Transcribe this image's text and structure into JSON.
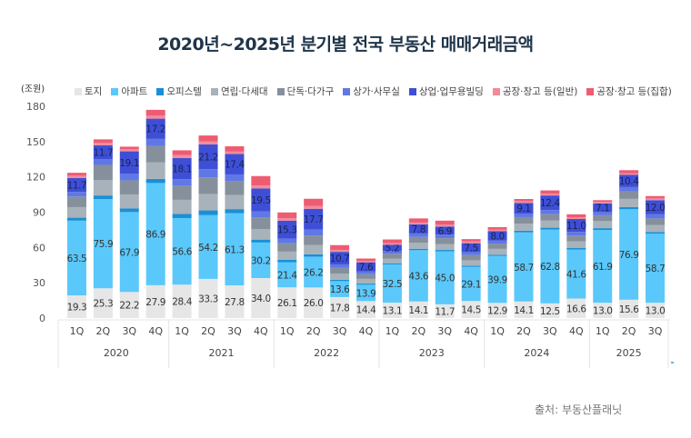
{
  "title": "2020년~2025년 분기별 전국 부동산 매매거래금액",
  "source": "출처: 부동산플래닛",
  "chart_data": {
    "type": "bar",
    "stacked": true,
    "title": "2020년~2025년 분기별 전국 부동산 매매거래금액",
    "ylabel": "(조원)",
    "xlabel": "",
    "ylim": [
      0,
      180
    ],
    "yticks": [
      0,
      30,
      60,
      90,
      120,
      150,
      180
    ],
    "grid": false,
    "legend_position": "top",
    "categories": [
      "1Q",
      "2Q",
      "3Q",
      "4Q",
      "1Q",
      "2Q",
      "3Q",
      "4Q",
      "1Q",
      "2Q",
      "3Q",
      "4Q",
      "1Q",
      "2Q",
      "3Q",
      "4Q",
      "1Q",
      "2Q",
      "3Q",
      "4Q",
      "1Q",
      "2Q",
      "3Q"
    ],
    "groups": [
      {
        "label": "2020",
        "count": 4
      },
      {
        "label": "2021",
        "count": 4
      },
      {
        "label": "2022",
        "count": 4
      },
      {
        "label": "2023",
        "count": 4
      },
      {
        "label": "2024",
        "count": 4
      },
      {
        "label": "2025",
        "count": 3
      }
    ],
    "series": [
      {
        "name": "토지",
        "color": "#e6e6e6",
        "labeled": true,
        "values": [
          19.3,
          25.3,
          22.2,
          27.9,
          28.4,
          33.3,
          27.8,
          34.0,
          26.1,
          26.0,
          17.8,
          14.4,
          13.1,
          14.1,
          11.7,
          14.5,
          12.9,
          14.1,
          12.5,
          16.6,
          13.0,
          15.6,
          13.0
        ]
      },
      {
        "name": "아파트",
        "color": "#5ac8fa",
        "labeled": true,
        "values": [
          63.5,
          75.9,
          67.9,
          86.9,
          56.6,
          54.2,
          61.3,
          30.2,
          21.4,
          26.2,
          13.6,
          13.9,
          32.5,
          43.6,
          45.0,
          29.1,
          39.9,
          58.7,
          62.8,
          41.6,
          61.9,
          76.9,
          58.7
        ]
      },
      {
        "name": "오피스텔",
        "color": "#1a8fd6",
        "labeled": false,
        "values": [
          2.5,
          3.0,
          3.0,
          3.5,
          3.5,
          4.0,
          3.5,
          2.5,
          2.0,
          2.0,
          1.2,
          1.0,
          1.0,
          1.2,
          1.2,
          1.0,
          1.0,
          1.5,
          1.5,
          1.5,
          1.5,
          1.8,
          1.5
        ]
      },
      {
        "name": "연립·다세대",
        "color": "#a7b2ba",
        "labeled": false,
        "values": [
          9.0,
          13.0,
          12.0,
          14.0,
          12.0,
          14.0,
          12.0,
          9.0,
          7.0,
          8.0,
          5.0,
          4.0,
          4.0,
          5.0,
          5.0,
          4.5,
          5.0,
          6.0,
          6.0,
          5.5,
          6.0,
          7.0,
          6.0
        ]
      },
      {
        "name": "단독·다가구",
        "color": "#85909c",
        "labeled": false,
        "values": [
          9.0,
          13.0,
          12.0,
          14.0,
          12.0,
          14.0,
          12.0,
          10.0,
          7.0,
          8.0,
          5.0,
          4.0,
          4.0,
          5.0,
          5.0,
          4.5,
          4.5,
          5.5,
          5.5,
          5.0,
          5.0,
          6.5,
          5.5
        ]
      },
      {
        "name": "상가·사무실",
        "color": "#6077e6",
        "labeled": false,
        "values": [
          4.0,
          5.0,
          5.5,
          6.0,
          5.5,
          7.0,
          5.5,
          5.0,
          4.0,
          5.0,
          3.0,
          2.5,
          2.5,
          3.0,
          3.0,
          2.5,
          2.5,
          3.0,
          3.5,
          3.0,
          3.0,
          3.5,
          3.5
        ]
      },
      {
        "name": "상업·업무용빌딩",
        "color": "#3e4fd6",
        "labeled": true,
        "values": [
          11.7,
          11.7,
          19.1,
          17.2,
          18.1,
          21.2,
          17.4,
          19.5,
          15.3,
          17.7,
          10.7,
          7.6,
          5.2,
          7.8,
          6.9,
          7.5,
          8.0,
          9.1,
          12.4,
          11.0,
          7.1,
          10.4,
          12.0
        ]
      },
      {
        "name": "공장·창고 등(일반)",
        "color": "#f4899a",
        "labeled": false,
        "values": [
          2.0,
          2.0,
          1.8,
          2.5,
          2.5,
          2.5,
          2.0,
          2.5,
          2.0,
          2.5,
          1.5,
          1.2,
          1.5,
          1.5,
          1.5,
          1.5,
          1.5,
          1.5,
          1.5,
          1.5,
          1.2,
          1.5,
          1.5
        ]
      },
      {
        "name": "공장·창고 등(집합)",
        "color": "#ee5c72",
        "labeled": false,
        "values": [
          2.5,
          3.0,
          2.2,
          5.0,
          4.0,
          5.0,
          4.5,
          8.0,
          5.0,
          6.0,
          4.2,
          2.0,
          3.0,
          3.5,
          3.5,
          2.0,
          2.0,
          1.8,
          2.8,
          2.5,
          1.5,
          2.5,
          2.0
        ]
      }
    ]
  }
}
